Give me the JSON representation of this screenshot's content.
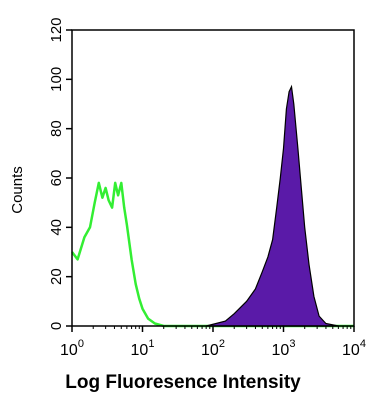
{
  "chart_data": {
    "type": "area",
    "xlabel": "Log Fluoresence Intensity",
    "ylabel": "Counts",
    "x_scale": "log",
    "xlim": [
      1,
      10000
    ],
    "ylim": [
      0,
      120
    ],
    "x_ticks": [
      {
        "value": 1,
        "base": "10",
        "exp": "0"
      },
      {
        "value": 10,
        "base": "10",
        "exp": "1"
      },
      {
        "value": 100,
        "base": "10",
        "exp": "2"
      },
      {
        "value": 1000,
        "base": "10",
        "exp": "3"
      },
      {
        "value": 10000,
        "base": "10",
        "exp": "4"
      }
    ],
    "y_ticks": [
      "0",
      "20",
      "40",
      "60",
      "80",
      "100",
      "120"
    ],
    "grid": false,
    "series": [
      {
        "style": "outline",
        "color": "#33ee33",
        "points": [
          [
            1,
            30
          ],
          [
            1.2,
            27
          ],
          [
            1.5,
            36
          ],
          [
            1.8,
            40
          ],
          [
            2.1,
            50
          ],
          [
            2.4,
            58
          ],
          [
            2.7,
            52
          ],
          [
            3.0,
            56
          ],
          [
            3.3,
            51
          ],
          [
            3.7,
            48
          ],
          [
            4.1,
            58
          ],
          [
            4.5,
            53
          ],
          [
            5.0,
            58
          ],
          [
            5.5,
            48
          ],
          [
            6.0,
            41
          ],
          [
            7.0,
            27
          ],
          [
            8.0,
            17
          ],
          [
            9.0,
            11
          ],
          [
            10.0,
            7
          ],
          [
            12,
            3
          ],
          [
            15,
            1
          ],
          [
            20,
            0
          ],
          [
            10000,
            0
          ]
        ]
      },
      {
        "style": "filled",
        "color": "#5a1aa8",
        "points": [
          [
            80,
            0
          ],
          [
            150,
            2
          ],
          [
            200,
            5
          ],
          [
            300,
            10
          ],
          [
            400,
            15
          ],
          [
            500,
            22
          ],
          [
            600,
            28
          ],
          [
            700,
            35
          ],
          [
            800,
            48
          ],
          [
            900,
            60
          ],
          [
            1000,
            72
          ],
          [
            1100,
            88
          ],
          [
            1200,
            95
          ],
          [
            1300,
            97
          ],
          [
            1400,
            90
          ],
          [
            1600,
            72
          ],
          [
            1800,
            55
          ],
          [
            2000,
            40
          ],
          [
            2300,
            25
          ],
          [
            2700,
            12
          ],
          [
            3200,
            4
          ],
          [
            4000,
            1
          ],
          [
            6000,
            0
          ]
        ]
      }
    ]
  }
}
